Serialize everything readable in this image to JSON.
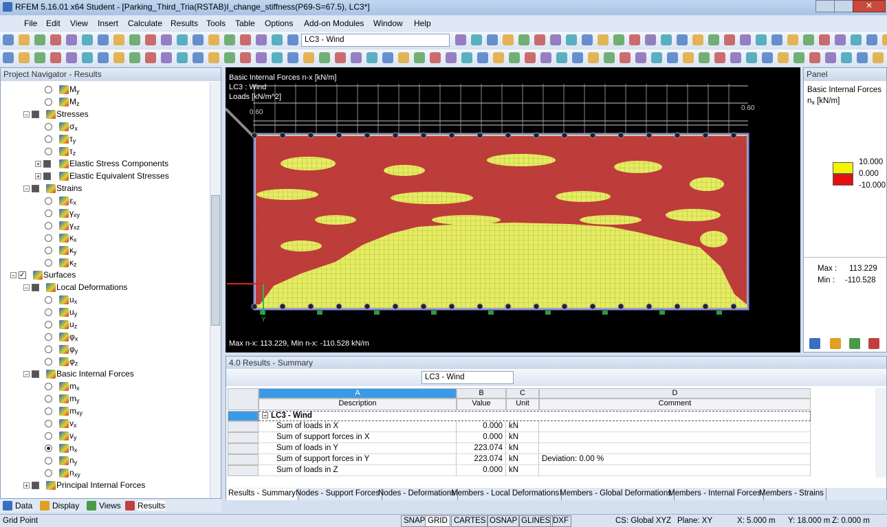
{
  "title_bar": "RFEM 5.16.01 x64 Student - [Parking_Third_Tria(RSTAB)I_change_stiffness(P69-S=67.5), LC3*]",
  "menu": [
    "File",
    "Edit",
    "View",
    "Insert",
    "Calculate",
    "Results",
    "Tools",
    "Table",
    "Options",
    "Add-on Modules",
    "Window",
    "Help"
  ],
  "toolbar": {
    "load_case": "LC3 - Wind"
  },
  "navigator": {
    "title": "Project Navigator - Results",
    "items": [
      {
        "label": "M",
        "sub": "y"
      },
      {
        "label": "M",
        "sub": "z"
      },
      {
        "label": "Stresses"
      },
      {
        "label": "σ",
        "sub": "x"
      },
      {
        "label": "τ",
        "sub": "y"
      },
      {
        "label": "τ",
        "sub": "z"
      },
      {
        "label": "Elastic Stress Components"
      },
      {
        "label": "Elastic Equivalent Stresses"
      },
      {
        "label": "Strains"
      },
      {
        "label": "ε",
        "sub": "x"
      },
      {
        "label": "γ",
        "sub": "xy"
      },
      {
        "label": "γ",
        "sub": "xz"
      },
      {
        "label": "κ",
        "sub": "x"
      },
      {
        "label": "κ",
        "sub": "y"
      },
      {
        "label": "κ",
        "sub": "z"
      },
      {
        "label": "Surfaces"
      },
      {
        "label": "Local Deformations"
      },
      {
        "label": "u",
        "sub": "x"
      },
      {
        "label": "u",
        "sub": "y"
      },
      {
        "label": "u",
        "sub": "z"
      },
      {
        "label": "φ",
        "sub": "x"
      },
      {
        "label": "φ",
        "sub": "y"
      },
      {
        "label": "φ",
        "sub": "z"
      },
      {
        "label": "Basic Internal Forces"
      },
      {
        "label": "m",
        "sub": "x"
      },
      {
        "label": "m",
        "sub": "y"
      },
      {
        "label": "m",
        "sub": "xy"
      },
      {
        "label": "v",
        "sub": "x"
      },
      {
        "label": "v",
        "sub": "y"
      },
      {
        "label": "n",
        "sub": "x"
      },
      {
        "label": "n",
        "sub": "y"
      },
      {
        "label": "n",
        "sub": "xy"
      },
      {
        "label": "Principal Internal Forces"
      }
    ],
    "tabs": [
      "Data",
      "Display",
      "Views",
      "Results"
    ]
  },
  "viewport": {
    "lines": [
      "Basic Internal Forces n-x [kN/m]",
      "LC3 : Wind",
      "Loads [kN/m^2]"
    ],
    "footer": "Max n-x: 113.229, Min n-x: -110.528 kN/m",
    "axis_y": "Y",
    "dim_left": "0.60",
    "dim_right": "0.60"
  },
  "panel": {
    "title": "Panel",
    "heading": "Basic Internal Forces",
    "unit": {
      "label": "n",
      "sub": "x",
      "rest": " [kN/m]"
    },
    "legend": [
      "10.000",
      "0.000",
      "-10.000"
    ],
    "max": {
      "label": "Max  :",
      "value": "113.229"
    },
    "min": {
      "label": "Min  :",
      "value": "-110.528"
    }
  },
  "results": {
    "title": "4.0 Results - Summary",
    "load_case": "LC3 - Wind",
    "columns": [
      {
        "letter": "A",
        "name": "Description"
      },
      {
        "letter": "B",
        "name": "Value"
      },
      {
        "letter": "C",
        "name": "Unit"
      },
      {
        "letter": "D",
        "name": "Comment"
      }
    ],
    "group": "LC3 - Wind",
    "rows": [
      {
        "description": "Sum of loads in X",
        "value": "0.000",
        "unit": "kN"
      },
      {
        "description": "Sum of support forces in X",
        "value": "0.000",
        "unit": "kN"
      },
      {
        "description": "Sum of loads in Y",
        "value": "223.074",
        "unit": "kN"
      },
      {
        "description": "Sum of support forces in Y",
        "value": "223.074",
        "unit": "kN",
        "comment": "Deviation:  0.00 %"
      },
      {
        "description": "Sum of loads in Z",
        "value": "0.000",
        "unit": "kN"
      }
    ],
    "tabs": [
      "Results - Summary",
      "Nodes - Support Forces",
      "Nodes - Deformations",
      "Members - Local Deformations",
      "Members - Global Deformations",
      "Members - Internal Forces",
      "Members - Strains"
    ]
  },
  "status": {
    "left": "Grid Point",
    "toggles": [
      "SNAP",
      "GRID",
      "CARTES",
      "OSNAP",
      "GLINES",
      "DXF"
    ],
    "coords": [
      "CS: Global XYZ",
      "Plane: XY",
      "X:  5.000 m",
      "Y:  18.000 m",
      "Z:  0.000 m"
    ]
  }
}
